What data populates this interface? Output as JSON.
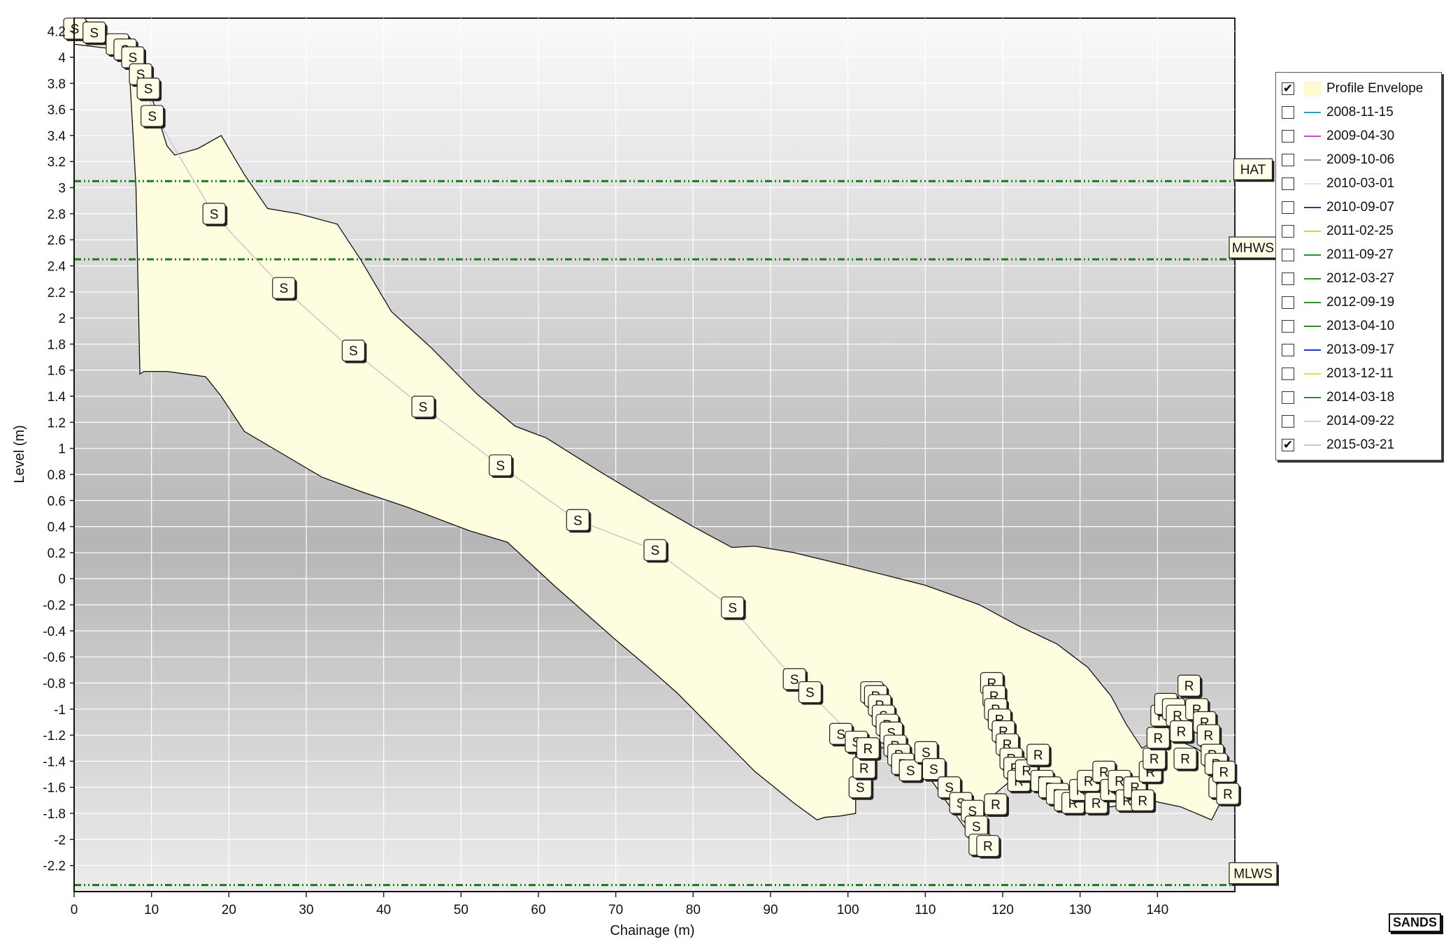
{
  "chart_data": {
    "type": "area",
    "title": "",
    "xlabel": "Chainage (m)",
    "ylabel": "Level (m)",
    "xlim": [
      0,
      150
    ],
    "ylim": [
      -2.4,
      4.3
    ],
    "x_ticks": [
      0,
      10,
      20,
      30,
      40,
      50,
      60,
      70,
      80,
      90,
      100,
      110,
      120,
      130,
      140
    ],
    "y_ticks": [
      4.2,
      4,
      3.8,
      3.6,
      3.4,
      3.2,
      3,
      2.8,
      2.6,
      2.4,
      2.2,
      2,
      1.8,
      1.6,
      1.4,
      1.2,
      1,
      0.8,
      0.6,
      0.4,
      0.2,
      0,
      -0.2,
      -0.4,
      -0.6,
      -0.8,
      -1,
      -1.2,
      -1.4,
      -1.6,
      -1.8,
      -2,
      -2.2
    ],
    "grid": true,
    "legend_position": "right",
    "colors": {
      "envelope": "#fffde0",
      "profile": "#c8c8c8",
      "reference": "#1a7a1a"
    },
    "envelope": {
      "upper": [
        [
          0,
          4.2
        ],
        [
          5,
          4.15
        ],
        [
          8,
          4.05
        ],
        [
          10,
          3.7
        ],
        [
          12,
          3.32
        ],
        [
          13,
          3.25
        ],
        [
          16,
          3.3
        ],
        [
          19,
          3.4
        ],
        [
          22,
          3.1
        ],
        [
          25,
          2.84
        ],
        [
          29,
          2.8
        ],
        [
          34,
          2.72
        ],
        [
          37,
          2.45
        ],
        [
          41,
          2.05
        ],
        [
          46,
          1.78
        ],
        [
          52,
          1.42
        ],
        [
          57,
          1.17
        ],
        [
          61,
          1.08
        ],
        [
          68,
          0.82
        ],
        [
          75,
          0.57
        ],
        [
          80,
          0.4
        ],
        [
          85,
          0.24
        ],
        [
          88,
          0.25
        ],
        [
          93,
          0.2
        ],
        [
          100,
          0.1
        ],
        [
          110,
          -0.05
        ],
        [
          117,
          -0.2
        ],
        [
          122,
          -0.36
        ],
        [
          127,
          -0.5
        ],
        [
          131,
          -0.68
        ],
        [
          134,
          -0.9
        ],
        [
          136,
          -1.12
        ],
        [
          138,
          -1.3
        ],
        [
          141,
          -1.2
        ],
        [
          145,
          -1.3
        ],
        [
          150,
          -1.5
        ]
      ],
      "lower": [
        [
          150,
          -1.5
        ],
        [
          147,
          -1.85
        ],
        [
          143,
          -1.75
        ],
        [
          139,
          -1.7
        ],
        [
          134,
          -1.75
        ],
        [
          129,
          -1.7
        ],
        [
          125,
          -1.6
        ],
        [
          121,
          -1.55
        ],
        [
          118,
          -1.7
        ],
        [
          117,
          -2.07
        ],
        [
          115,
          -1.9
        ],
        [
          110,
          -1.48
        ],
        [
          105,
          -1.3
        ],
        [
          101,
          -1.28
        ],
        [
          101,
          -1.8
        ],
        [
          99,
          -1.82
        ],
        [
          97,
          -1.83
        ],
        [
          96,
          -1.85
        ],
        [
          93,
          -1.72
        ],
        [
          88,
          -1.48
        ],
        [
          83,
          -1.18
        ],
        [
          78,
          -0.88
        ],
        [
          74,
          -0.67
        ],
        [
          70,
          -0.47
        ],
        [
          62,
          -0.05
        ],
        [
          56,
          0.28
        ],
        [
          51,
          0.37
        ],
        [
          43,
          0.55
        ],
        [
          37,
          0.67
        ],
        [
          32,
          0.78
        ],
        [
          26,
          0.99
        ],
        [
          22,
          1.13
        ],
        [
          19,
          1.4
        ],
        [
          17,
          1.55
        ],
        [
          12,
          1.59
        ],
        [
          9,
          1.59
        ],
        [
          8.5,
          1.57
        ],
        [
          8,
          3.0
        ],
        [
          7,
          4.05
        ],
        [
          0,
          4.1
        ]
      ]
    },
    "series": [
      {
        "name": "2015-03-21",
        "x": [
          0,
          2.5,
          5,
          6.5,
          7.5,
          8.5,
          9.5,
          10,
          18,
          27,
          36,
          45,
          55,
          65,
          75,
          85,
          93,
          95,
          100,
          103,
          105,
          108,
          110,
          112,
          115,
          116,
          118,
          119
        ],
        "y": [
          4.22,
          4.19,
          4.12,
          4.08,
          4.03,
          3.96,
          3.81,
          3.6,
          2.8,
          2.23,
          1.75,
          1.32,
          0.87,
          0.45,
          0.22,
          -0.22,
          -0.77,
          -0.87,
          -1.17,
          -1.25,
          -1.3,
          -1.38,
          -1.45,
          -1.55,
          -1.67,
          -1.78,
          -1.95,
          -2.08
        ]
      }
    ],
    "markers": [
      {
        "label": "S",
        "x": 0,
        "y": 4.22
      },
      {
        "label": "S",
        "x": 2.5,
        "y": 4.19
      },
      {
        "label": "S",
        "x": 5.5,
        "y": 4.1
      },
      {
        "label": "S",
        "x": 6.5,
        "y": 4.06
      },
      {
        "label": "S",
        "x": 7.5,
        "y": 4.0
      },
      {
        "label": "S",
        "x": 8.5,
        "y": 3.87
      },
      {
        "label": "S",
        "x": 9.5,
        "y": 3.76
      },
      {
        "label": "S",
        "x": 10,
        "y": 3.55
      },
      {
        "label": "S",
        "x": 18,
        "y": 2.8
      },
      {
        "label": "S",
        "x": 27,
        "y": 2.23
      },
      {
        "label": "S",
        "x": 36,
        "y": 1.75
      },
      {
        "label": "S",
        "x": 45,
        "y": 1.32
      },
      {
        "label": "S",
        "x": 55,
        "y": 0.87
      },
      {
        "label": "S",
        "x": 65,
        "y": 0.45
      },
      {
        "label": "S",
        "x": 75,
        "y": 0.22
      },
      {
        "label": "S",
        "x": 85,
        "y": -0.22
      },
      {
        "label": "S",
        "x": 93,
        "y": -0.77
      },
      {
        "label": "S",
        "x": 95,
        "y": -0.87
      },
      {
        "label": "S",
        "x": 99,
        "y": -1.19
      },
      {
        "label": "S",
        "x": 101,
        "y": -1.25
      },
      {
        "label": "S",
        "x": 101.5,
        "y": -1.6
      },
      {
        "label": "R",
        "x": 102,
        "y": -1.45
      },
      {
        "label": "R",
        "x": 102.5,
        "y": -1.3
      },
      {
        "label": "R",
        "x": 103,
        "y": -0.87
      },
      {
        "label": "R",
        "x": 103.5,
        "y": -0.9
      },
      {
        "label": "R",
        "x": 104,
        "y": -0.97
      },
      {
        "label": "S",
        "x": 104.5,
        "y": -1.05
      },
      {
        "label": "R",
        "x": 105,
        "y": -1.12
      },
      {
        "label": "S",
        "x": 105.5,
        "y": -1.18
      },
      {
        "label": "R",
        "x": 106,
        "y": -1.28
      },
      {
        "label": "R",
        "x": 106.5,
        "y": -1.35
      },
      {
        "label": "R",
        "x": 107,
        "y": -1.42
      },
      {
        "label": "S",
        "x": 108,
        "y": -1.47
      },
      {
        "label": "S",
        "x": 110,
        "y": -1.33
      },
      {
        "label": "S",
        "x": 111,
        "y": -1.46
      },
      {
        "label": "S",
        "x": 113,
        "y": -1.6
      },
      {
        "label": "S",
        "x": 114.5,
        "y": -1.72
      },
      {
        "label": "S",
        "x": 116,
        "y": -1.78
      },
      {
        "label": "S",
        "x": 116.5,
        "y": -1.9
      },
      {
        "label": "R",
        "x": 117,
        "y": -2.04
      },
      {
        "label": "R",
        "x": 118,
        "y": -2.05
      },
      {
        "label": "R",
        "x": 119,
        "y": -1.73
      },
      {
        "label": "R",
        "x": 118.5,
        "y": -0.8
      },
      {
        "label": "R",
        "x": 118.8,
        "y": -0.9
      },
      {
        "label": "R",
        "x": 119,
        "y": -1.0
      },
      {
        "label": "R",
        "x": 119.5,
        "y": -1.08
      },
      {
        "label": "R",
        "x": 120,
        "y": -1.17
      },
      {
        "label": "R",
        "x": 120.5,
        "y": -1.27
      },
      {
        "label": "R",
        "x": 121,
        "y": -1.38
      },
      {
        "label": "R",
        "x": 121.5,
        "y": -1.45
      },
      {
        "label": "R",
        "x": 122,
        "y": -1.55
      },
      {
        "label": "R",
        "x": 123,
        "y": -1.47
      },
      {
        "label": "R",
        "x": 124.5,
        "y": -1.35
      },
      {
        "label": "R",
        "x": 125,
        "y": -1.55
      },
      {
        "label": "R",
        "x": 126,
        "y": -1.6
      },
      {
        "label": "R",
        "x": 127,
        "y": -1.65
      },
      {
        "label": "R",
        "x": 128,
        "y": -1.7
      },
      {
        "label": "R",
        "x": 129,
        "y": -1.72
      },
      {
        "label": "R",
        "x": 130,
        "y": -1.62
      },
      {
        "label": "R",
        "x": 131,
        "y": -1.55
      },
      {
        "label": "R",
        "x": 132,
        "y": -1.72
      },
      {
        "label": "R",
        "x": 133,
        "y": -1.48
      },
      {
        "label": "R",
        "x": 134,
        "y": -1.62
      },
      {
        "label": "R",
        "x": 135,
        "y": -1.55
      },
      {
        "label": "R",
        "x": 136,
        "y": -1.7
      },
      {
        "label": "R",
        "x": 137,
        "y": -1.6
      },
      {
        "label": "R",
        "x": 138,
        "y": -1.7
      },
      {
        "label": "R",
        "x": 139,
        "y": -1.48
      },
      {
        "label": "R",
        "x": 139.5,
        "y": -1.38
      },
      {
        "label": "R",
        "x": 140,
        "y": -1.22
      },
      {
        "label": "R",
        "x": 140.5,
        "y": -1.05
      },
      {
        "label": "R",
        "x": 141,
        "y": -0.96
      },
      {
        "label": "R",
        "x": 142,
        "y": -1.0
      },
      {
        "label": "R",
        "x": 142.5,
        "y": -1.05
      },
      {
        "label": "R",
        "x": 143,
        "y": -1.17
      },
      {
        "label": "R",
        "x": 143.5,
        "y": -1.38
      },
      {
        "label": "R",
        "x": 144,
        "y": -0.82
      },
      {
        "label": "R",
        "x": 145,
        "y": -1.0
      },
      {
        "label": "R",
        "x": 146,
        "y": -1.1
      },
      {
        "label": "R",
        "x": 146.5,
        "y": -1.2
      },
      {
        "label": "R",
        "x": 147,
        "y": -1.35
      },
      {
        "label": "R",
        "x": 147.5,
        "y": -1.42
      },
      {
        "label": "R",
        "x": 148,
        "y": -1.6
      },
      {
        "label": "R",
        "x": 148.5,
        "y": -1.48
      },
      {
        "label": "R",
        "x": 149,
        "y": -1.65
      }
    ],
    "reference_lines": [
      {
        "label": "HAT",
        "y": 3.05
      },
      {
        "label": "MHWS",
        "y": 2.45
      },
      {
        "label": "MLWS",
        "y": -2.35
      }
    ]
  },
  "legend": {
    "items": [
      {
        "label": "Profile Envelope",
        "checked": true,
        "color": "#fffacd",
        "kind": "fill"
      },
      {
        "label": "2008-11-15",
        "checked": false,
        "color": "#2e9fb0",
        "kind": "line"
      },
      {
        "label": "2009-04-30",
        "checked": false,
        "color": "#d23fd2",
        "kind": "line"
      },
      {
        "label": "2009-10-06",
        "checked": false,
        "color": "#9a9a9a",
        "kind": "line"
      },
      {
        "label": "2010-03-01",
        "checked": false,
        "color": "#e0e0e0",
        "kind": "line"
      },
      {
        "label": "2010-09-07",
        "checked": false,
        "color": "#2233cc",
        "kind": "line"
      },
      {
        "label": "2011-02-25",
        "checked": false,
        "color": "#e6d21a",
        "kind": "line"
      },
      {
        "label": "2011-09-27",
        "checked": false,
        "color": "#2e8b2e",
        "kind": "line"
      },
      {
        "label": "2012-03-27",
        "checked": false,
        "color": "#2e8b2e",
        "kind": "line"
      },
      {
        "label": "2012-09-19",
        "checked": false,
        "color": "#2e8b2e",
        "kind": "line"
      },
      {
        "label": "2013-04-10",
        "checked": false,
        "color": "#2e8b2e",
        "kind": "line"
      },
      {
        "label": "2013-09-17",
        "checked": false,
        "color": "#2233cc",
        "kind": "line"
      },
      {
        "label": "2013-12-11",
        "checked": false,
        "color": "#e6e61a",
        "kind": "line"
      },
      {
        "label": "2014-03-18",
        "checked": false,
        "color": "#2e8b2e",
        "kind": "line"
      },
      {
        "label": "2014-09-22",
        "checked": false,
        "color": "#d0d0d0",
        "kind": "line"
      },
      {
        "label": "2015-03-21",
        "checked": true,
        "color": "#c8c8c8",
        "kind": "line"
      }
    ]
  },
  "watermark": "SANDS"
}
